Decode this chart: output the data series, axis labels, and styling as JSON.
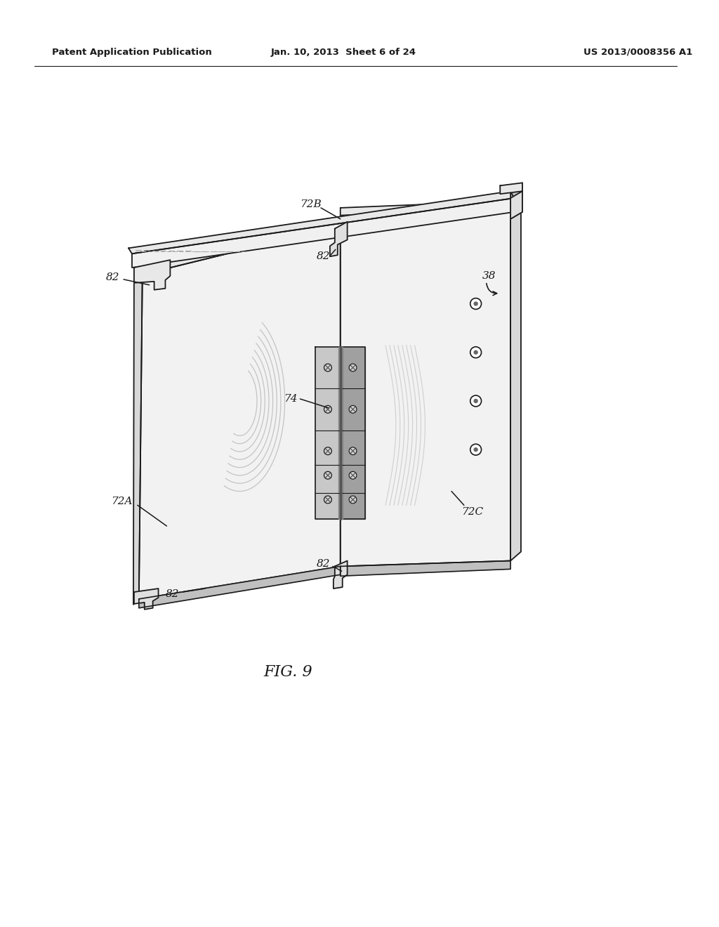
{
  "bg_color": "#ffffff",
  "line_color": "#1a1a1a",
  "header_text": "Patent Application Publication",
  "header_date": "Jan. 10, 2013  Sheet 6 of 24",
  "header_patent": "US 2013/0008356 A1",
  "fig_label": "FIG. 9",
  "panel_fill": "#f2f2f2",
  "panel_top_fill": "#d8d8d8",
  "panel_side_fill": "#e8e8e8",
  "panel_dark_fill": "#c0c0c0",
  "hinge_fill": "#c8c8c8",
  "hinge_dark": "#a0a0a0"
}
